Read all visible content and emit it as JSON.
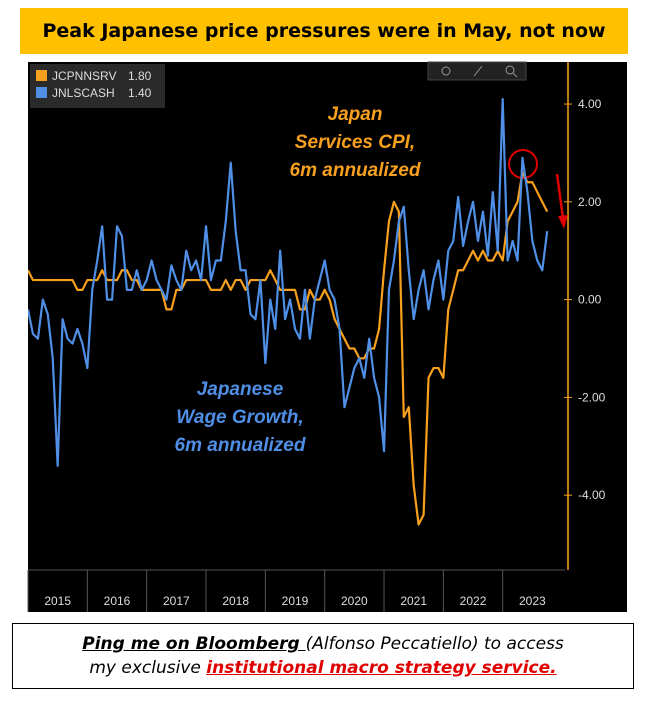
{
  "chart_data": {
    "type": "line",
    "title": "Peak Japanese price pressures were in May, not now",
    "x": [
      2015,
      2015.083,
      2015.167,
      2015.25,
      2015.333,
      2015.417,
      2015.5,
      2015.583,
      2015.667,
      2015.75,
      2015.833,
      2015.917,
      2016,
      2016.083,
      2016.167,
      2016.25,
      2016.333,
      2016.417,
      2016.5,
      2016.583,
      2016.667,
      2016.75,
      2016.833,
      2016.917,
      2017,
      2017.083,
      2017.167,
      2017.25,
      2017.333,
      2017.417,
      2017.5,
      2017.583,
      2017.667,
      2017.75,
      2017.833,
      2017.917,
      2018,
      2018.083,
      2018.167,
      2018.25,
      2018.333,
      2018.417,
      2018.5,
      2018.583,
      2018.667,
      2018.75,
      2018.833,
      2018.917,
      2019,
      2019.083,
      2019.167,
      2019.25,
      2019.333,
      2019.417,
      2019.5,
      2019.583,
      2019.667,
      2019.75,
      2019.833,
      2019.917,
      2020,
      2020.083,
      2020.167,
      2020.25,
      2020.333,
      2020.417,
      2020.5,
      2020.583,
      2020.667,
      2020.75,
      2020.833,
      2020.917,
      2021,
      2021.083,
      2021.167,
      2021.25,
      2021.333,
      2021.417,
      2021.5,
      2021.583,
      2021.667,
      2021.75,
      2021.833,
      2021.917,
      2022,
      2022.083,
      2022.167,
      2022.25,
      2022.333,
      2022.417,
      2022.5,
      2022.583,
      2022.667,
      2022.75,
      2022.833,
      2022.917,
      2023,
      2023.083,
      2023.167,
      2023.25,
      2023.333,
      2023.417,
      2023.5,
      2023.583,
      2023.667,
      2023.75
    ],
    "series": [
      {
        "name": "JCPNNSRV",
        "legend_label": "1.80",
        "color": "#f7a01d",
        "values": [
          0.6,
          0.4,
          0.4,
          0.4,
          0.4,
          0.4,
          0.4,
          0.4,
          0.4,
          0.4,
          0.2,
          0.2,
          0.4,
          0.4,
          0.4,
          0.6,
          0.4,
          0.4,
          0.4,
          0.6,
          0.6,
          0.4,
          0.4,
          0.2,
          0.2,
          0.2,
          0.2,
          0.2,
          -0.2,
          -0.2,
          0.2,
          0.2,
          0.4,
          0.4,
          0.4,
          0.4,
          0.4,
          0.2,
          0.2,
          0.2,
          0.4,
          0.2,
          0.4,
          0.4,
          0.2,
          0.4,
          0.4,
          0.4,
          0.4,
          0.6,
          0.4,
          0.2,
          0.2,
          0.2,
          0.2,
          -0.2,
          -0.2,
          0.2,
          0.0,
          0.0,
          0.2,
          0.0,
          -0.4,
          -0.6,
          -0.8,
          -1.0,
          -1.0,
          -1.2,
          -1.2,
          -1.0,
          -1.0,
          -0.6,
          0.6,
          1.6,
          2.0,
          1.8,
          -2.4,
          -2.2,
          -3.8,
          -4.6,
          -4.4,
          -1.6,
          -1.4,
          -1.4,
          -1.6,
          -0.2,
          0.2,
          0.6,
          0.6,
          0.8,
          1.0,
          0.8,
          1.0,
          0.8,
          0.8,
          1.0,
          0.8,
          1.6,
          1.8,
          2.0,
          2.6,
          2.4,
          2.4,
          2.2,
          2.0,
          1.8
        ]
      },
      {
        "name": "JNLSCASH",
        "legend_label": "1.40",
        "color": "#4f8fe6",
        "values": [
          -0.2,
          -0.7,
          -0.8,
          0.0,
          -0.3,
          -1.2,
          -3.4,
          -0.4,
          -0.8,
          -0.9,
          -0.6,
          -0.9,
          -1.4,
          0.2,
          0.8,
          1.5,
          0.0,
          0.0,
          1.5,
          1.3,
          0.2,
          0.2,
          0.6,
          0.2,
          0.4,
          0.8,
          0.4,
          0.2,
          0.0,
          0.7,
          0.4,
          0.2,
          1.0,
          0.6,
          0.8,
          0.4,
          1.5,
          0.4,
          0.8,
          0.8,
          1.6,
          2.8,
          1.4,
          0.6,
          0.6,
          -0.3,
          -0.4,
          0.4,
          -1.3,
          0.0,
          -0.6,
          1.0,
          -0.4,
          0.0,
          -0.6,
          -0.8,
          0.2,
          -0.8,
          0.0,
          0.4,
          0.8,
          0.2,
          0.0,
          -0.6,
          -2.2,
          -1.8,
          -1.4,
          -1.2,
          -1.6,
          -0.8,
          -1.6,
          -2.0,
          -3.1,
          0.2,
          0.8,
          1.6,
          1.9,
          0.6,
          -0.4,
          0.2,
          0.6,
          -0.2,
          0.4,
          0.8,
          0.0,
          1.0,
          1.2,
          2.1,
          1.1,
          1.6,
          2.0,
          1.2,
          1.8,
          0.9,
          2.2,
          1.0,
          4.1,
          0.8,
          1.2,
          0.8,
          2.9,
          2.2,
          1.2,
          0.8,
          0.6,
          1.4
        ]
      }
    ],
    "xlim": [
      2015,
      2024.05
    ],
    "xticks": [
      2015,
      2016,
      2017,
      2018,
      2019,
      2020,
      2021,
      2022,
      2023
    ],
    "ylim": [
      -5.53,
      4.86
    ],
    "yticks": [
      {
        "value": 4,
        "label": "4.00"
      },
      {
        "value": 2,
        "label": "2.00"
      },
      {
        "value": 0,
        "label": "0.00"
      },
      {
        "value": -2,
        "label": "-2.00"
      },
      {
        "value": -4,
        "label": "-4.00"
      }
    ],
    "grid": false,
    "annotations": [
      {
        "lines": [
          "Japan",
          "Services CPI,",
          "6m annualized"
        ],
        "color": "#f7a01d"
      },
      {
        "lines": [
          "Japanese",
          "Wage Growth,",
          "6m annualized"
        ],
        "color": "#4f8fe6"
      }
    ]
  },
  "footer": {
    "line1": [
      "Ping me on Bloomberg ",
      "(Alfonso Peccatiello) to access"
    ],
    "line2": [
      "my exclusive ",
      "institutional macro strategy service."
    ]
  }
}
